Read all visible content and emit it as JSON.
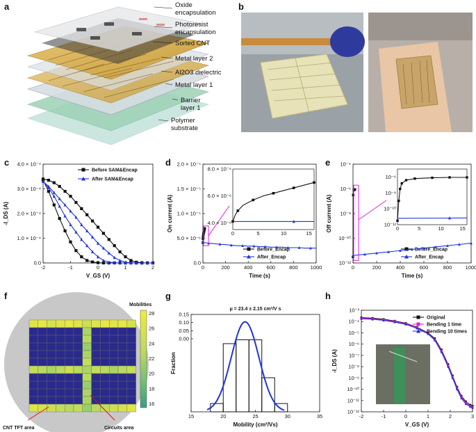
{
  "panels": {
    "a": {
      "label": "a",
      "layers": [
        {
          "line1": "Oxide",
          "line2": "encapsulation"
        },
        {
          "line1": "Photoresist",
          "line2": "encapsulation"
        },
        {
          "line1": "Sorted CNT",
          "line2": ""
        },
        {
          "line1": "Metal layer 2",
          "line2": ""
        },
        {
          "line1": "Al2O3 dielectric",
          "line2": ""
        },
        {
          "line1": "Metal layer 1",
          "line2": ""
        },
        {
          "line1": "Barrier",
          "line2": "layer 1"
        },
        {
          "line1": "Polymer",
          "line2": "substrate"
        }
      ]
    },
    "b": {
      "label": "b"
    },
    "c": {
      "label": "c"
    },
    "d": {
      "label": "d"
    },
    "e": {
      "label": "e"
    },
    "f": {
      "label": "f"
    },
    "g": {
      "label": "g"
    },
    "h": {
      "label": "h"
    }
  },
  "colors": {
    "black": "#111111",
    "blue": "#1f35d6",
    "magenta": "#e020e0",
    "navy": "#2a2a8c",
    "wafer": "#c8c8c8"
  },
  "chart_data": [
    {
      "id": "c",
      "type": "line",
      "xlabel": "V_GS (V)",
      "ylabel": "-I_DS (A)",
      "xlim": [
        -2,
        2
      ],
      "ylim": [
        0,
        0.0004
      ],
      "xticks": [
        "-2",
        "-1",
        "0",
        "1",
        "2"
      ],
      "yticks": [
        "0.0",
        "1.0 × 10⁻⁴",
        "2.0 × 10⁻⁴",
        "3.0 × 10⁻⁴",
        "4.0 × 10⁻⁴"
      ],
      "series": [
        {
          "name": "Before SAM&Encap",
          "color": "#111111",
          "forward_x": [
            -2,
            -1.8,
            -1.6,
            -1.4,
            -1.2,
            -1,
            -0.8,
            -0.6,
            -0.4,
            -0.2,
            0,
            0.2,
            0.4,
            0.6,
            0.8,
            1,
            1.2,
            1.4,
            1.6,
            1.8,
            2
          ],
          "forward_y": [
            0.00034,
            0.000335,
            0.000325,
            0.00031,
            0.00029,
            0.00027,
            0.000245,
            0.00022,
            0.000195,
            0.00017,
            0.000145,
            0.00012,
            9.5e-05,
            7e-05,
            4.5e-05,
            2.5e-05,
            1e-05,
            3e-06,
            1e-06,
            0,
            0
          ],
          "reverse_x": [
            -2,
            -1.8,
            -1.6,
            -1.4,
            -1.2,
            -1,
            -0.8,
            -0.6,
            -0.4,
            -0.2,
            0,
            0.2,
            0.4,
            0.6,
            0.8,
            1,
            1.2,
            1.4,
            1.6,
            1.8,
            2
          ],
          "reverse_y": [
            0.000335,
            0.00029,
            0.000235,
            0.00018,
            0.00013,
            8.5e-05,
            5e-05,
            2.5e-05,
            1e-05,
            4e-06,
            1e-06,
            0,
            0,
            0,
            0,
            0,
            0,
            0,
            0,
            0,
            0
          ]
        },
        {
          "name": "After SAM&Encap",
          "color": "#1f35d6",
          "forward_x": [
            -2,
            -1.8,
            -1.6,
            -1.4,
            -1.2,
            -1,
            -0.8,
            -0.6,
            -0.4,
            -0.2,
            0,
            0.2,
            0.4,
            0.6,
            0.8,
            1,
            1.2,
            1.4,
            1.6,
            1.8,
            2
          ],
          "forward_y": [
            0.00033,
            0.00031,
            0.000285,
            0.00026,
            0.000235,
            0.00021,
            0.000185,
            0.000155,
            0.00013,
            0.000105,
            8e-05,
            6e-05,
            4e-05,
            2.2e-05,
            1e-05,
            3e-06,
            1e-06,
            0,
            0,
            0,
            0
          ],
          "reverse_x": [
            -2,
            -1.8,
            -1.6,
            -1.4,
            -1.2,
            -1,
            -0.8,
            -0.6,
            -0.4,
            -0.2,
            0,
            0.2,
            0.4,
            0.6,
            0.8,
            1,
            1.2,
            1.4,
            1.6,
            1.8,
            2
          ],
          "reverse_y": [
            0.00033,
            0.000305,
            0.00027,
            0.00023,
            0.00019,
            0.000155,
            0.000125,
            9.5e-05,
            7e-05,
            4.5e-05,
            2.5e-05,
            1e-05,
            3e-06,
            1e-06,
            0,
            0,
            0,
            0,
            0,
            0,
            0
          ]
        }
      ]
    },
    {
      "id": "d",
      "type": "line",
      "xlabel": "Time (s)",
      "ylabel": "On current (A)",
      "xlim": [
        0,
        1000
      ],
      "ylim": [
        0,
        2e-05
      ],
      "xticks": [
        "0",
        "200",
        "400",
        "600",
        "800",
        "1000"
      ],
      "yticks": [
        "0.0",
        "5.0 × 10⁻⁶",
        "1.0 × 10⁻⁵",
        "1.5 × 10⁻⁵",
        "2.0 × 10⁻⁵"
      ],
      "series": [
        {
          "name": "Before_Encap",
          "color": "#111111",
          "x": [
            0,
            1,
            2,
            4,
            6,
            8,
            10,
            12,
            14,
            16
          ],
          "y": [
            4.1e-06,
            4.9e-06,
            5.3e-06,
            5.7e-06,
            6e-06,
            6.2e-06,
            6.4e-06,
            6.6e-06,
            6.8e-06,
            7e-06
          ]
        },
        {
          "name": "After_Encap",
          "color": "#1f35d6",
          "x": [
            0,
            25,
            50,
            100,
            150,
            200,
            250,
            300,
            350,
            400,
            450,
            500,
            550,
            600,
            650,
            700,
            750,
            800,
            850,
            900,
            950,
            1000
          ],
          "y": [
            4.1e-06,
            4.1e-06,
            4e-06,
            3.9e-06,
            3.8e-06,
            3.7e-06,
            3.6e-06,
            3.5e-06,
            3.5e-06,
            3.4e-06,
            3.4e-06,
            3.3e-06,
            3.3e-06,
            3.2e-06,
            3.2e-06,
            3.2e-06,
            3.1e-06,
            3.1e-06,
            3.1e-06,
            3e-06,
            3e-06,
            3e-06
          ]
        }
      ],
      "inset": {
        "xlim": [
          0,
          16
        ],
        "ylim": [
          3.5e-06,
          8e-06
        ],
        "xticks": [
          "0",
          "5",
          "10",
          "15"
        ],
        "yticks": [
          "4.0 × 10⁻⁶",
          "6.0 × 10⁻⁶",
          "8.0 × 10⁻⁶"
        ],
        "series": [
          {
            "name": "Before_Encap",
            "x": [
              0,
              0.5,
              1,
              2,
              4,
              6,
              8,
              10,
              12,
              14,
              16
            ],
            "y": [
              4.1e-06,
              4.6e-06,
              4.9e-06,
              5.3e-06,
              5.7e-06,
              6e-06,
              6.2e-06,
              6.4e-06,
              6.6e-06,
              6.8e-06,
              7e-06
            ]
          },
          {
            "name": "After_Encap",
            "x": [
              0,
              16
            ],
            "y": [
              4.1e-06,
              4.1e-06
            ]
          }
        ]
      }
    },
    {
      "id": "e",
      "type": "line",
      "xlabel": "Time (s)",
      "ylabel": "Off current (A)",
      "xlim": [
        0,
        1000
      ],
      "ylim_log10": [
        -12,
        -4
      ],
      "xticks": [
        "0",
        "200",
        "400",
        "600",
        "800",
        "1000"
      ],
      "yticks": [
        "10⁻¹²",
        "10⁻¹⁰",
        "10⁻⁸",
        "10⁻⁶",
        "10⁻⁴"
      ],
      "series": [
        {
          "name": "Before_Encap",
          "color": "#111111",
          "x": [
            0,
            1,
            2,
            4,
            8,
            12,
            16
          ],
          "y_log10": [
            -11.5,
            -7,
            -6.5,
            -6.2,
            -6.1,
            -6.05,
            -6.05
          ]
        },
        {
          "name": "After_Encap",
          "color": "#1f35d6",
          "x": [
            0,
            50,
            100,
            150,
            200,
            250,
            300,
            350,
            400,
            450,
            500,
            550,
            600,
            650,
            700,
            750,
            800,
            850,
            900,
            950,
            1000
          ],
          "y_log10": [
            -11.4,
            -11.35,
            -11.3,
            -11.25,
            -11.2,
            -11.15,
            -11.1,
            -11.05,
            -11,
            -10.95,
            -10.9,
            -10.85,
            -10.8,
            -10.75,
            -10.7,
            -10.65,
            -10.6,
            -10.55,
            -10.5,
            -10.45,
            -10.4
          ]
        }
      ],
      "inset": {
        "xlim": [
          0,
          16
        ],
        "ylim_log10": [
          -12,
          -5
        ],
        "xticks": [
          "0",
          "5",
          "10",
          "15"
        ],
        "yticks": [
          "10⁻¹²",
          "10⁻¹⁰",
          "10⁻⁸",
          "10⁻⁶"
        ],
        "series": [
          {
            "name": "Before_Encap",
            "x": [
              0,
              0.3,
              0.6,
              1,
              2,
              4,
              8,
              12,
              16
            ],
            "y_log10": [
              -11.5,
              -9,
              -7.5,
              -6.8,
              -6.4,
              -6.2,
              -6.1,
              -6.05,
              -6.05
            ]
          },
          {
            "name": "After_Encap",
            "x": [
              0,
              16
            ],
            "y_log10": [
              -11.2,
              -11.15
            ]
          }
        ]
      }
    },
    {
      "id": "f",
      "type": "heatmap",
      "colorbar_title": "Mobilities",
      "colorbar_ticks": [
        "16",
        "18",
        "20",
        "22",
        "24",
        "26",
        "28"
      ],
      "vrange": [
        15,
        29
      ],
      "annotations": [
        "CNT TFT area",
        "Circuits area"
      ],
      "rows": [
        [
          27,
          28,
          26,
          27,
          28,
          27,
          25,
          27,
          28,
          27,
          28,
          26
        ],
        [
          15,
          15,
          15,
          15,
          15,
          15,
          22,
          15,
          15,
          15,
          15,
          15
        ],
        [
          15,
          15,
          15,
          15,
          15,
          15,
          23,
          15,
          15,
          15,
          15,
          15
        ],
        [
          15,
          15,
          15,
          15,
          15,
          15,
          21,
          15,
          15,
          15,
          15,
          15
        ],
        [
          15,
          15,
          15,
          15,
          15,
          15,
          22,
          15,
          15,
          15,
          15,
          15
        ],
        [
          15,
          15,
          15,
          15,
          15,
          15,
          24,
          15,
          15,
          15,
          15,
          15
        ],
        [
          24,
          23,
          22,
          23,
          25,
          23,
          22,
          24,
          23,
          22,
          23,
          24
        ],
        [
          15,
          15,
          15,
          15,
          15,
          15,
          23,
          15,
          15,
          15,
          15,
          15
        ],
        [
          15,
          15,
          15,
          15,
          15,
          15,
          21,
          15,
          15,
          15,
          15,
          15
        ],
        [
          15,
          15,
          15,
          15,
          15,
          15,
          22,
          15,
          15,
          15,
          15,
          15
        ],
        [
          15,
          15,
          15,
          15,
          15,
          15,
          22,
          15,
          15,
          15,
          15,
          15
        ],
        [
          27,
          26,
          25,
          24,
          23,
          24,
          21,
          23,
          24,
          25,
          26,
          27
        ]
      ]
    },
    {
      "id": "g",
      "type": "bar",
      "title": "μ = 23.4 ± 2.15 cm²/V s",
      "xlabel": "Mobility (cm²/Vs)",
      "ylabel": "Fraction",
      "xlim": [
        15,
        35
      ],
      "ylim": [
        0,
        0.2
      ],
      "xticks": [
        "15",
        "20",
        "25",
        "30",
        "35"
      ],
      "yticks": [
        "0.00",
        "0.05",
        "0.10",
        "0.15"
      ],
      "bins": [
        [
          18,
          20,
          0.017
        ],
        [
          20,
          22,
          0.14
        ],
        [
          22,
          24,
          0.148
        ],
        [
          24,
          26,
          0.148
        ],
        [
          26,
          28,
          0.07
        ],
        [
          28,
          30,
          0.017
        ]
      ],
      "fit": {
        "mean": 23.4,
        "sd": 2.15,
        "peak": 0.185
      }
    },
    {
      "id": "h",
      "type": "line",
      "xlabel": "V_GS (V)",
      "ylabel": "-I_DS (A)",
      "xlim": [
        -2,
        3
      ],
      "ylim_log10": [
        -12,
        -3
      ],
      "xticks": [
        "-2",
        "-1",
        "0",
        "1",
        "2",
        "3"
      ],
      "yticks": [
        "10⁻¹²",
        "10⁻¹¹",
        "10⁻¹⁰",
        "10⁻⁹",
        "10⁻⁸",
        "10⁻⁷",
        "10⁻⁶",
        "10⁻⁵",
        "10⁻⁴",
        "10⁻³"
      ],
      "series": [
        {
          "name": "Original",
          "color": "#111111",
          "x": [
            -2,
            -1.5,
            -1,
            -0.5,
            0,
            0.5,
            1,
            1.3,
            1.6,
            1.9,
            2.1,
            2.3,
            2.5,
            2.7,
            2.9,
            3
          ],
          "y_log10": [
            -3.65,
            -3.7,
            -3.8,
            -3.95,
            -4.15,
            -4.5,
            -5,
            -5.5,
            -6.5,
            -7.8,
            -8.8,
            -9.8,
            -10.6,
            -11.1,
            -11.4,
            -11.5
          ]
        },
        {
          "name": "Bending 1 time",
          "color": "#e020e0",
          "x": [
            -2,
            -1.5,
            -1,
            -0.5,
            0,
            0.5,
            1,
            1.3,
            1.6,
            1.9,
            2.1,
            2.3,
            2.5,
            2.7,
            2.9,
            3
          ],
          "y_log10": [
            -3.7,
            -3.75,
            -3.85,
            -4,
            -4.2,
            -4.55,
            -5.05,
            -5.6,
            -6.6,
            -7.9,
            -8.9,
            -9.9,
            -10.7,
            -11.2,
            -11.5,
            -11.6
          ]
        },
        {
          "name": "Bending 10 times",
          "color": "#1f35d6",
          "x": [
            -2,
            -1.5,
            -1,
            -0.5,
            0,
            0.5,
            1,
            1.3,
            1.6,
            1.9,
            2.1,
            2.3,
            2.5,
            2.7,
            2.9,
            3
          ],
          "y_log10": [
            -3.75,
            -3.8,
            -3.9,
            -4.05,
            -4.25,
            -4.6,
            -5.1,
            -5.65,
            -6.7,
            -8,
            -9,
            -10,
            -10.8,
            -11.3,
            -11.55,
            -11.65
          ]
        }
      ]
    }
  ]
}
